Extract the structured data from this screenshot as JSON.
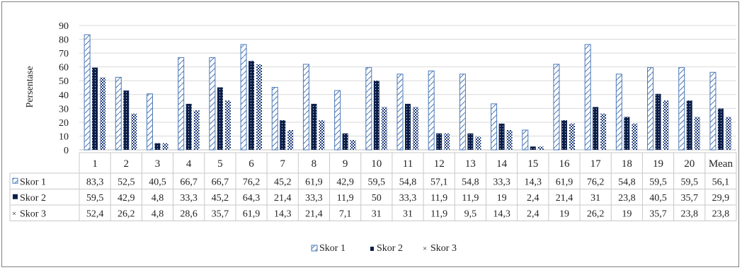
{
  "chart_data": {
    "type": "bar",
    "ylabel": "Persentase",
    "yticks": [
      "0",
      "10",
      "20",
      "30",
      "40",
      "50",
      "60",
      "70",
      "80",
      "90"
    ],
    "ylim": [
      0,
      90
    ],
    "grid": true,
    "legend_position": "bottom",
    "categories": [
      "1",
      "2",
      "3",
      "4",
      "5",
      "6",
      "7",
      "8",
      "9",
      "10",
      "11",
      "12",
      "13",
      "14",
      "15",
      "16",
      "17",
      "18",
      "19",
      "20",
      "Mean"
    ],
    "series": [
      {
        "name": "Skor 1",
        "labels": [
          "83,3",
          "52,5",
          "40,5",
          "66,7",
          "66,7",
          "76,2",
          "45,2",
          "61,9",
          "42,9",
          "59,5",
          "54,8",
          "57,1",
          "54,8",
          "33,3",
          "14,3",
          "61,9",
          "76,2",
          "54,8",
          "59,5",
          "59,5",
          "56,1"
        ],
        "values": [
          83.3,
          52.5,
          40.5,
          66.7,
          66.7,
          76.2,
          45.2,
          61.9,
          42.9,
          59.5,
          54.8,
          57.1,
          54.8,
          33.3,
          14.3,
          61.9,
          76.2,
          54.8,
          59.5,
          59.5,
          56.1
        ]
      },
      {
        "name": "Skor 2",
        "labels": [
          "59,5",
          "42,9",
          "4,8",
          "33,3",
          "45,2",
          "64,3",
          "21,4",
          "33,3",
          "11,9",
          "50",
          "33,3",
          "11,9",
          "11,9",
          "19",
          "2,4",
          "21,4",
          "31",
          "23,8",
          "40,5",
          "35,7",
          "29,9"
        ],
        "values": [
          59.5,
          42.9,
          4.8,
          33.3,
          45.2,
          64.3,
          21.4,
          33.3,
          11.9,
          50,
          33.3,
          11.9,
          11.9,
          19,
          2.4,
          21.4,
          31,
          23.8,
          40.5,
          35.7,
          29.9
        ]
      },
      {
        "name": "Skor 3",
        "labels": [
          "52,4",
          "26,2",
          "4,8",
          "28,6",
          "35,7",
          "61,9",
          "14,3",
          "21,4",
          "7,1",
          "31",
          "31",
          "11,9",
          "9,5",
          "14,3",
          "2,4",
          "19",
          "26,2",
          "19",
          "35,7",
          "23,8",
          "23,8"
        ],
        "values": [
          52.4,
          26.2,
          4.8,
          28.6,
          35.7,
          61.9,
          14.3,
          21.4,
          7.1,
          31,
          31,
          11.9,
          9.5,
          14.3,
          2.4,
          19,
          26.2,
          19,
          35.7,
          23.8,
          23.8
        ]
      }
    ],
    "colors": {
      "border": "#4a78b8",
      "grid": "#d9d9d9",
      "fill_dark": "#0b1f4a"
    }
  }
}
